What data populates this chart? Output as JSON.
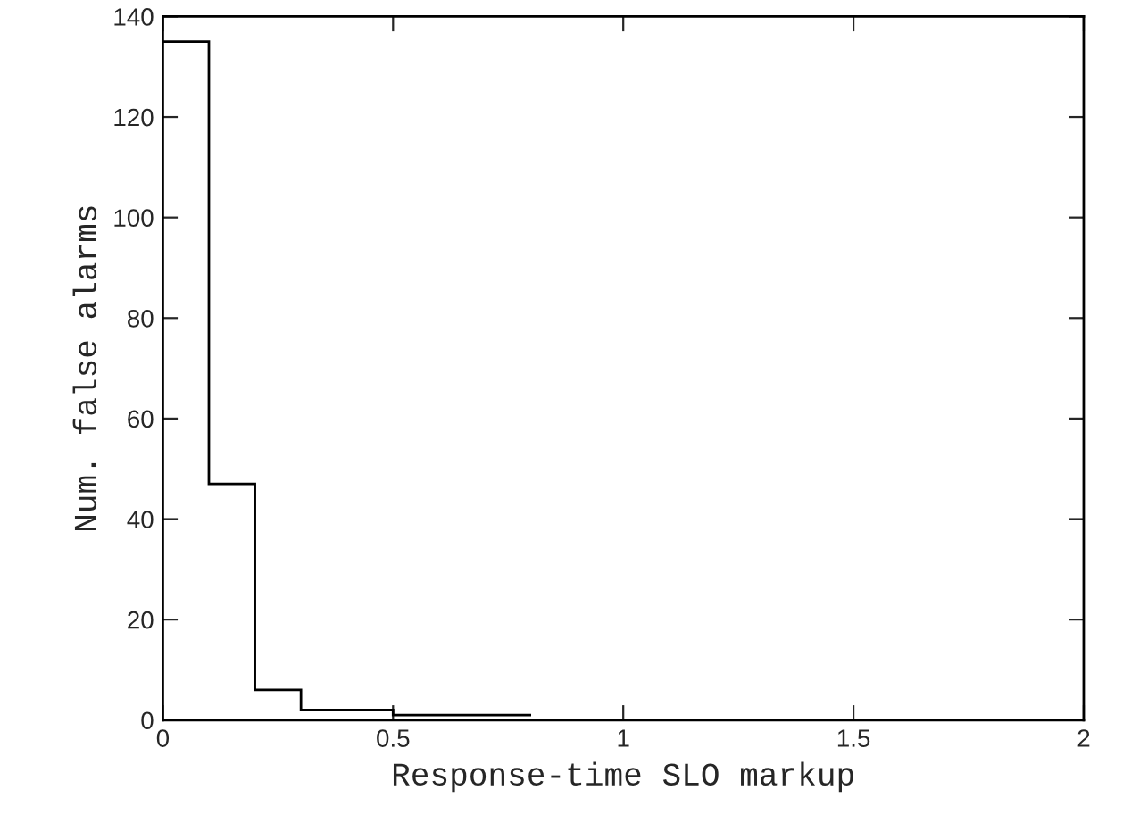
{
  "chart_data": {
    "type": "histogram",
    "xlabel": "Response-time SLO markup",
    "ylabel": "Num. false alarms",
    "bins": [
      0,
      0.1,
      0.2,
      0.3,
      0.4,
      0.5,
      0.6,
      0.7,
      0.8
    ],
    "values": [
      135,
      47,
      6,
      2,
      2,
      1,
      1,
      1
    ],
    "color": "#000000",
    "xlim": [
      0,
      2
    ],
    "xticks": [
      0,
      0.5,
      1,
      1.5,
      2
    ],
    "ylim": [
      0,
      140
    ],
    "yticks": [
      0,
      20,
      40,
      60,
      80,
      100,
      120,
      140
    ],
    "grid": false,
    "legend": false
  }
}
